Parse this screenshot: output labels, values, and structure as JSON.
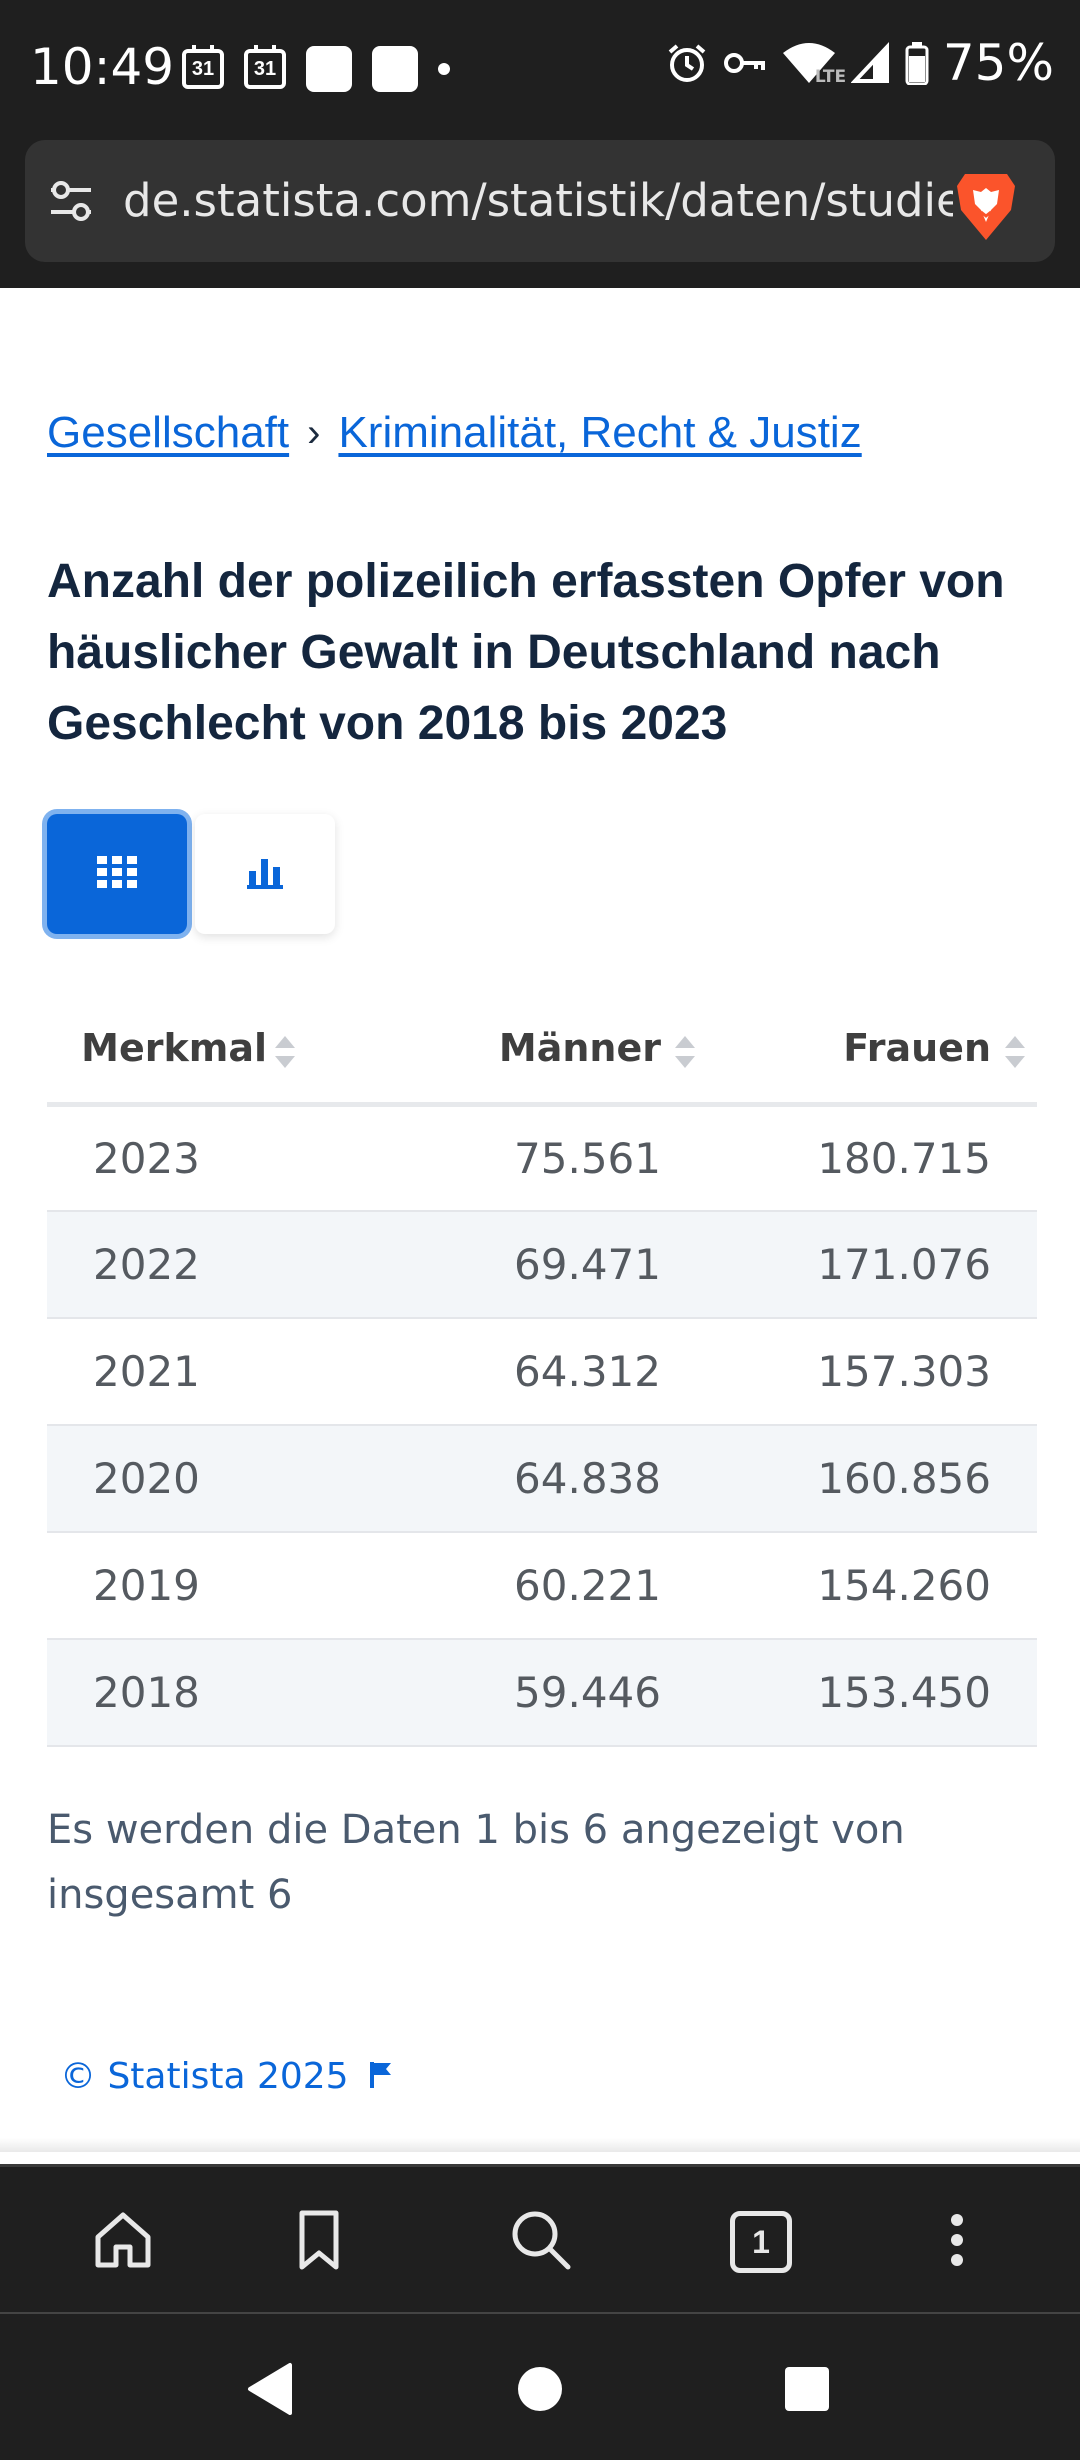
{
  "status_bar": {
    "time": "10:49",
    "calendar_day_1": "31",
    "calendar_day_2": "31",
    "battery": "75%",
    "network_label": "LTE"
  },
  "browser": {
    "url": "de.statista.com/statistik/daten/studie",
    "tab_count": "1"
  },
  "breadcrumb": {
    "items": [
      "Gesellschaft",
      "Kriminalität, Recht & Justiz"
    ],
    "separator": "›"
  },
  "page": {
    "title": "Anzahl der polizeilich erfassten Opfer von häuslicher Gewalt in Deutschland nach Geschlecht von 2018 bis 2023"
  },
  "table": {
    "columns": [
      "Merkmal",
      "Männer",
      "Frauen"
    ],
    "rows": [
      [
        "2023",
        "75.561",
        "180.715"
      ],
      [
        "2022",
        "69.471",
        "171.076"
      ],
      [
        "2021",
        "64.312",
        "157.303"
      ],
      [
        "2020",
        "64.838",
        "160.856"
      ],
      [
        "2019",
        "60.221",
        "154.260"
      ],
      [
        "2018",
        "59.446",
        "153.450"
      ]
    ],
    "info": "Es werden die Daten 1 bis 6 angezeigt von insgesamt 6"
  },
  "footer": {
    "copyright": "© Statista 2025"
  },
  "colors": {
    "accent": "#0a66d9",
    "title": "#14263e",
    "chrome": "#1f1f1f",
    "row_alt": "#f3f6f9"
  },
  "icons": {
    "table_view": "grid-icon",
    "chart_view": "bar-chart-icon",
    "site_settings": "tune-icon",
    "browser_logo": "brave-lion-icon"
  }
}
